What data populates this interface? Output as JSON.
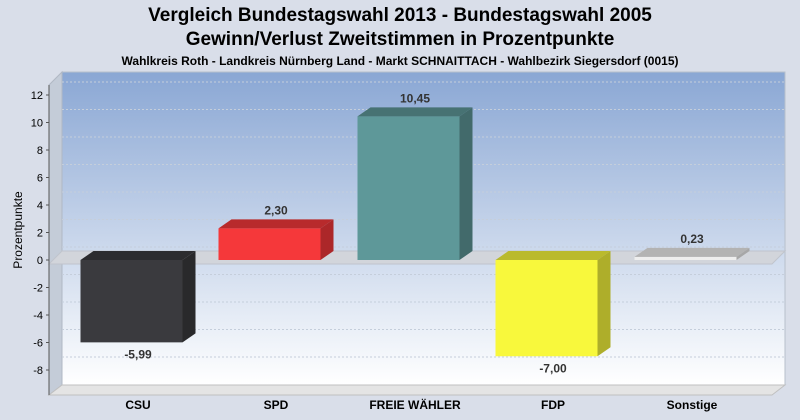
{
  "chart_data": {
    "type": "bar",
    "title_line1": "Vergleich Bundestagswahl 2013  - Bundestagswahl 2005",
    "title_line2": "Gewinn/Verlust Zweitstimmen in Prozentpunkte",
    "subtitle": "Wahlkreis Roth - Landkreis Nürnberg Land - Markt SCHNAITTACH - Wahlbezirk Siegersdorf (0015)",
    "ylabel": "Prozentpunkte",
    "ylim": [
      -9,
      13
    ],
    "yticks": [
      12,
      10,
      8,
      6,
      4,
      2,
      0,
      -2,
      -4,
      -6,
      -8
    ],
    "categories": [
      "CSU",
      "SPD",
      "FREIE WÄHLER",
      "FDP",
      "Sonstige"
    ],
    "values": [
      -5.99,
      2.3,
      10.45,
      -7.0,
      0.23
    ],
    "value_labels": [
      "-5,99",
      "2,30",
      "10,45",
      "-7,00",
      "0,23"
    ],
    "colors": [
      "#3a3a3e",
      "#f5383a",
      "#5e9899",
      "#f8f83c",
      "#eeeeee"
    ],
    "grid": true
  }
}
